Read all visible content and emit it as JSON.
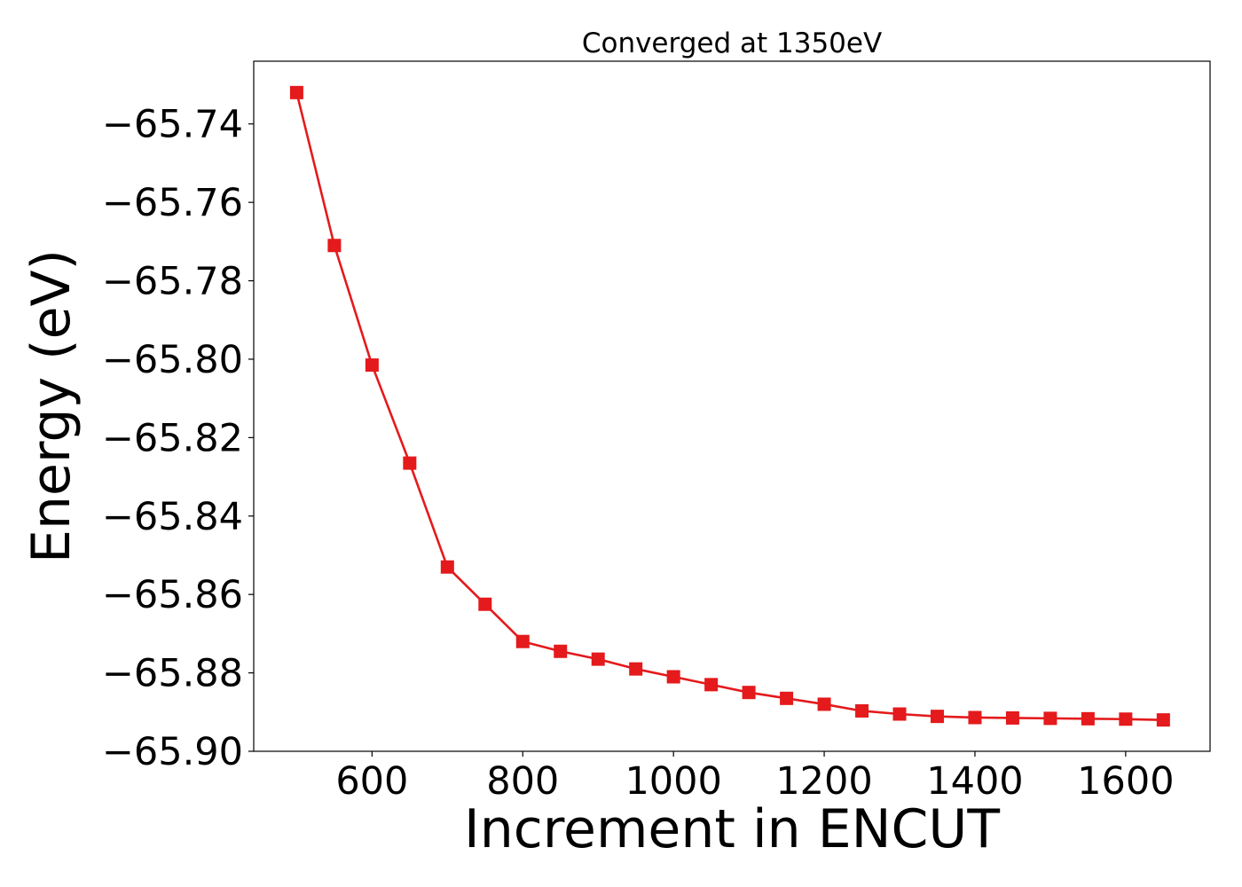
{
  "chart_data": {
    "type": "line",
    "title": "Converged at 1350eV",
    "xlabel": "Increment in ENCUT",
    "ylabel": "Energy (eV)",
    "xlim": [
      443,
      1712
    ],
    "ylim": [
      -65.9,
      -65.724
    ],
    "xticks": [
      {
        "value": 600,
        "label": "600"
      },
      {
        "value": 800,
        "label": "800"
      },
      {
        "value": 1000,
        "label": "1000"
      },
      {
        "value": 1200,
        "label": "1200"
      },
      {
        "value": 1400,
        "label": "1400"
      },
      {
        "value": 1600,
        "label": "1600"
      }
    ],
    "yticks": [
      {
        "value": -65.74,
        "label": "−65.74"
      },
      {
        "value": -65.76,
        "label": "−65.76"
      },
      {
        "value": -65.78,
        "label": "−65.78"
      },
      {
        "value": -65.8,
        "label": "−65.80"
      },
      {
        "value": -65.82,
        "label": "−65.82"
      },
      {
        "value": -65.84,
        "label": "−65.84"
      },
      {
        "value": -65.86,
        "label": "−65.86"
      },
      {
        "value": -65.88,
        "label": "−65.88"
      },
      {
        "value": -65.9,
        "label": "−65.90"
      }
    ],
    "grid": false,
    "series": [
      {
        "color": "#e41a1c",
        "marker": "square",
        "x": [
          500,
          550,
          600,
          650,
          700,
          750,
          800,
          850,
          900,
          950,
          1000,
          1050,
          1100,
          1150,
          1200,
          1250,
          1300,
          1350,
          1400,
          1450,
          1500,
          1550,
          1600,
          1650
        ],
        "y": [
          -65.732,
          -65.771,
          -65.8015,
          -65.8265,
          -65.853,
          -65.8625,
          -65.872,
          -65.8745,
          -65.8765,
          -65.879,
          -65.881,
          -65.883,
          -65.885,
          -65.8865,
          -65.888,
          -65.8897,
          -65.8905,
          -65.8911,
          -65.8914,
          -65.8915,
          -65.8916,
          -65.8917,
          -65.8918,
          -65.892
        ]
      }
    ]
  }
}
